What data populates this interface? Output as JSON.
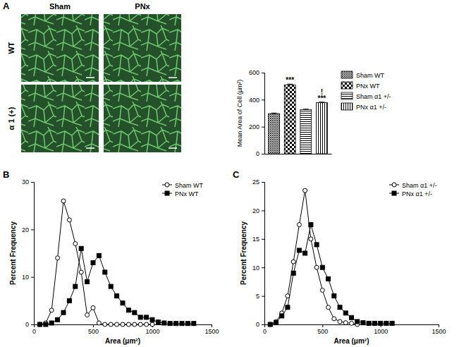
{
  "micrographs": {
    "panel": "A",
    "columns": [
      "Sham",
      "PNx"
    ],
    "rows": [
      "WT",
      "α 1 (+)"
    ]
  },
  "chart_data": [
    {
      "type": "bar",
      "categories": [
        "Sham WT",
        "PNx WT",
        "Sham α1 +/-",
        "PNx α1 +/-"
      ],
      "values": [
        297,
        510,
        327,
        378
      ],
      "errors": [
        4,
        5,
        3,
        4
      ],
      "color": "#000000",
      "ylabel": "Mean Area of Cell (μm²)",
      "ylim": [
        0,
        600
      ],
      "yticks": [
        0,
        200,
        400,
        600
      ],
      "tick_labels": "y",
      "legend": "right",
      "annotations": [
        {
          "category": "PNx WT",
          "text": "***"
        },
        {
          "category": "PNx α1 +/-",
          "text": "***"
        },
        {
          "category": "PNx α1 +/-",
          "text": "!"
        }
      ]
    },
    {
      "type": "line",
      "title": "B",
      "xlabel": "Area (μm²)",
      "ylabel": "Percent Frequency",
      "x": [
        50,
        100,
        150,
        200,
        250,
        300,
        350,
        400,
        450,
        500,
        550,
        600,
        650,
        700,
        750,
        800,
        850,
        900,
        950,
        1000,
        1050,
        1100,
        1150,
        1200,
        1250,
        1300,
        1350
      ],
      "xlim": [
        0,
        1500
      ],
      "xticks": [
        0,
        500,
        1000,
        1500
      ],
      "ylim": [
        0,
        30
      ],
      "yticks": [
        0,
        10,
        20,
        30
      ],
      "legend": "upper right",
      "series": [
        {
          "name": "Sham WT",
          "color": "#000000",
          "marker": "open-circle",
          "values": [
            0,
            0.3,
            3,
            14,
            26,
            22,
            17,
            11,
            2,
            3.5,
            0.3,
            0,
            0,
            0,
            0,
            0,
            0,
            0,
            0,
            0,
            null,
            null,
            null,
            null,
            null,
            null,
            null
          ]
        },
        {
          "name": "PNx WT",
          "color": "#000000",
          "marker": "square",
          "values": [
            0,
            0,
            0.3,
            1,
            2.5,
            5,
            8,
            16,
            9,
            13,
            14.5,
            11,
            8,
            6,
            4.5,
            3,
            2.5,
            1.5,
            1.5,
            1,
            0.5,
            0.3,
            0.2,
            0.2,
            0.2,
            0.2,
            0.2
          ]
        }
      ]
    },
    {
      "type": "line",
      "title": "C",
      "xlabel": "Area (μm²)",
      "ylabel": "Percent Frequency",
      "x": [
        50,
        100,
        150,
        200,
        250,
        300,
        350,
        400,
        450,
        500,
        550,
        600,
        650,
        700,
        750,
        800,
        850,
        900,
        950,
        1000,
        1050,
        1100,
        1150,
        1200,
        1250,
        1300,
        1350
      ],
      "xlim": [
        0,
        1500
      ],
      "xticks": [
        0,
        500,
        1000,
        1500
      ],
      "ylim": [
        0,
        25
      ],
      "yticks": [
        0,
        5,
        10,
        15,
        20,
        25
      ],
      "legend": "upper right",
      "series": [
        {
          "name": "Sham α1 +/-",
          "color": "#000000",
          "marker": "open-circle",
          "values": [
            0,
            0.5,
            2,
            5,
            11,
            17.5,
            23.5,
            15,
            10,
            6,
            3,
            1,
            0.5,
            0.3,
            0.2,
            0,
            null,
            null,
            null,
            null,
            null,
            null,
            null,
            null,
            null,
            null,
            null
          ]
        },
        {
          "name": "PNx α1 +/-",
          "color": "#000000",
          "marker": "square",
          "values": [
            0,
            0.3,
            1.5,
            3,
            9,
            13,
            12.5,
            17.5,
            14,
            10,
            8,
            5,
            3,
            2,
            1.2,
            0.5,
            0.3,
            0.2,
            0.2,
            0.2,
            0.2,
            0.2,
            null,
            null,
            null,
            null,
            null
          ]
        }
      ]
    }
  ]
}
